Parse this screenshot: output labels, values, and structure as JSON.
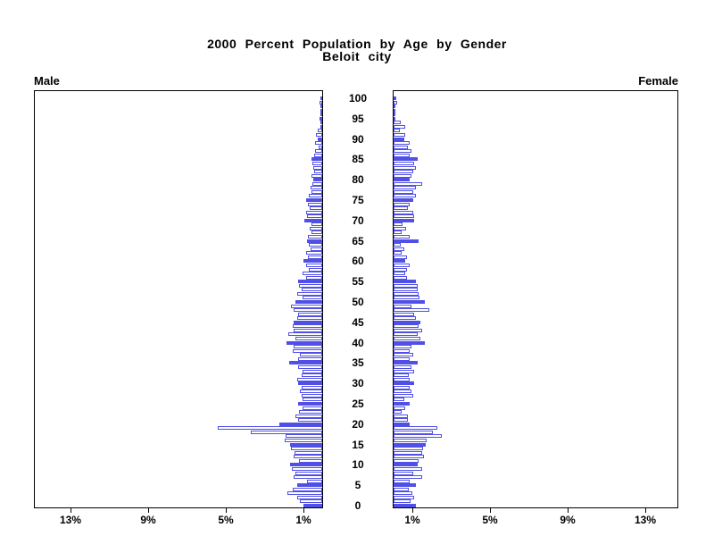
{
  "title": {
    "line1": "2000 Percent Population by Age by Gender",
    "line2": "Beloit city"
  },
  "panels": {
    "left_label": "Male",
    "right_label": "Female"
  },
  "axis": {
    "percent_ticks": [
      1,
      5,
      9,
      13
    ],
    "percent_suffix": "%",
    "age_tick_step": 5,
    "age_min": 0,
    "age_max": 100
  },
  "chart_data": {
    "type": "bar",
    "subtype": "population-pyramid",
    "title": "2000 Percent Population by Age by Gender",
    "subtitle": "Beloit city",
    "x_unit": "percent of population",
    "xlim_each_side": [
      0,
      14.9
    ],
    "age_range": [
      0,
      100
    ],
    "highlight_every": 5,
    "legend_position": "none",
    "grid": false,
    "colors": {
      "bar_outline": "#5050e6",
      "bar_fill_solid": "#5050e6",
      "bar_fill_hollow": "#ffffff",
      "axis": "#000000"
    },
    "series": [
      {
        "name": "Male",
        "values": [
          0.95,
          1.15,
          1.28,
          1.8,
          1.54,
          1.28,
          0.8,
          1.49,
          1.38,
          1.58,
          1.64,
          1.18,
          1.45,
          1.43,
          1.61,
          1.66,
          1.95,
          1.89,
          3.66,
          5.38,
          2.2,
          1.26,
          1.38,
          1.18,
          1.0,
          1.25,
          1.0,
          1.08,
          1.15,
          1.08,
          1.23,
          1.31,
          1.08,
          1.0,
          1.23,
          1.69,
          1.23,
          1.15,
          1.54,
          1.46,
          1.84,
          1.38,
          1.77,
          1.46,
          1.54,
          1.46,
          1.31,
          1.23,
          1.46,
          1.61,
          1.38,
          1.0,
          1.3,
          1.05,
          1.2,
          1.25,
          0.85,
          1.0,
          0.7,
          0.85,
          0.95,
          0.75,
          0.85,
          0.6,
          0.7,
          0.8,
          0.75,
          0.55,
          0.65,
          0.55,
          0.9,
          0.8,
          0.85,
          0.65,
          0.75,
          0.85,
          0.7,
          0.55,
          0.6,
          0.5,
          0.45,
          0.55,
          0.4,
          0.45,
          0.5,
          0.55,
          0.4,
          0.35,
          0.2,
          0.35,
          0.25,
          0.3,
          0.25,
          0.05,
          0.1,
          0.15,
          0.03,
          0.03,
          0.03,
          0.15,
          0.03
        ]
      },
      {
        "name": "Female",
        "values": [
          1.15,
          0.89,
          1.04,
          0.95,
          0.77,
          1.15,
          0.85,
          1.46,
          1.0,
          1.46,
          1.23,
          1.3,
          1.55,
          1.45,
          1.5,
          1.64,
          1.7,
          2.5,
          2.04,
          2.23,
          0.85,
          0.74,
          0.74,
          0.43,
          0.61,
          0.85,
          0.54,
          1.0,
          0.92,
          0.85,
          1.08,
          0.85,
          0.77,
          1.08,
          0.92,
          1.23,
          0.85,
          1.0,
          0.85,
          0.92,
          1.6,
          1.38,
          1.23,
          1.46,
          1.3,
          1.38,
          1.15,
          1.08,
          1.84,
          0.92,
          1.6,
          1.35,
          1.3,
          1.23,
          1.23,
          1.15,
          0.7,
          0.61,
          0.7,
          0.85,
          0.61,
          0.7,
          0.43,
          0.54,
          0.38,
          1.3,
          0.85,
          0.43,
          0.65,
          0.46,
          1.08,
          1.08,
          1.0,
          0.74,
          0.85,
          1.0,
          1.15,
          1.0,
          1.15,
          1.46,
          0.85,
          0.92,
          1.0,
          1.15,
          1.08,
          1.23,
          0.85,
          0.92,
          0.74,
          0.85,
          0.54,
          0.58,
          0.34,
          0.58,
          0.35,
          0.05,
          0.03,
          0.03,
          0.03,
          0.18,
          0.15
        ]
      }
    ]
  }
}
